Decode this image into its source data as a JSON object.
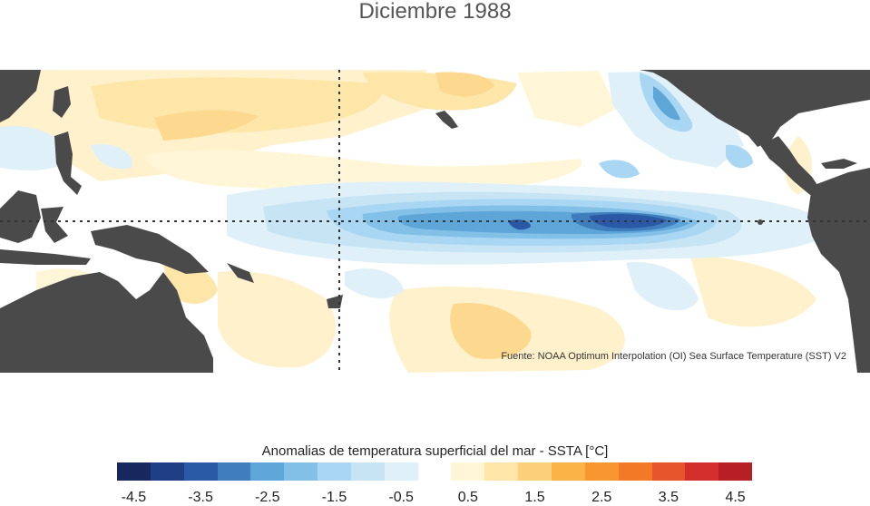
{
  "title": "Diciembre 1988",
  "source_note": "Fuente: NOAA Optimum Interpolation (OI) Sea Surface Temperature (SST) V2",
  "colorbar": {
    "label": "Anomalias de temperatura superficial del mar - SSTA  [°C]",
    "ticks": [
      "-4.5",
      "-3.5",
      "-2.5",
      "-1.5",
      "-0.5",
      "0.5",
      "1.5",
      "2.5",
      "3.5",
      "4.5"
    ],
    "colors": [
      "#17285e",
      "#203e86",
      "#2a5aa5",
      "#3f7dbd",
      "#5ea5d8",
      "#82c0e8",
      "#a9d6f2",
      "#c7e4f5",
      "#dff0f9",
      "#ffffff",
      "#fff6d8",
      "#fde6a8",
      "#fccf7a",
      "#fbb348",
      "#f89730",
      "#f27a26",
      "#e6552b",
      "#d22e2b",
      "#b71f24"
    ],
    "tick_range": [
      -4.5,
      4.5
    ]
  },
  "map": {
    "land_color": "#4a4a4a",
    "ocean_color": "#ffffff",
    "reference_lines": [
      "equator",
      "dateline"
    ]
  }
}
